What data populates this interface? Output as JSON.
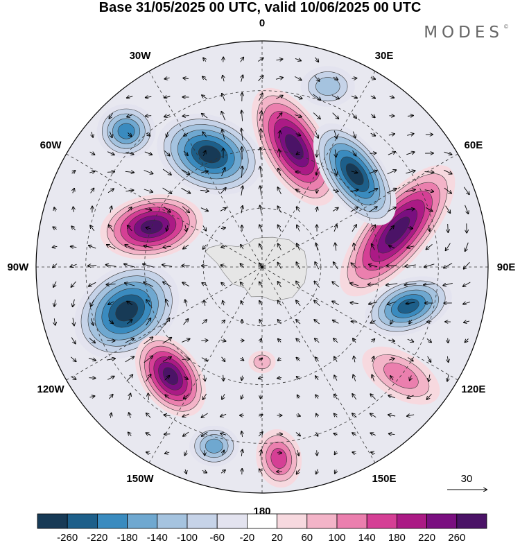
{
  "title": "Base 31/05/2025 00 UTC, valid 10/06/2025 00 UTC",
  "brand": "MODES",
  "brand_mark": "©",
  "map": {
    "projection": "south-polar-stereographic",
    "longitude_labels": [
      {
        "text": "0",
        "lon": 0
      },
      {
        "text": "30E",
        "lon": 30
      },
      {
        "text": "60E",
        "lon": 60
      },
      {
        "text": "90E",
        "lon": 90
      },
      {
        "text": "120E",
        "lon": 120
      },
      {
        "text": "150E",
        "lon": 150
      },
      {
        "text": "180",
        "lon": 180
      },
      {
        "text": "150W",
        "lon": -150
      },
      {
        "text": "120W",
        "lon": -120
      },
      {
        "text": "90W",
        "lon": -90
      },
      {
        "text": "60W",
        "lon": -60
      },
      {
        "text": "30W",
        "lon": -30
      }
    ],
    "land_color": "#e6e6e6",
    "grid": true
  },
  "vector_reference": {
    "label": "30"
  },
  "colorbar": {
    "ticks": [
      "-260",
      "-220",
      "-180",
      "-140",
      "-100",
      "-60",
      "-20",
      "20",
      "60",
      "100",
      "140",
      "180",
      "220",
      "260"
    ],
    "colors": [
      "#173a56",
      "#1d5f8a",
      "#3a8bbf",
      "#6fa8d0",
      "#a5c3df",
      "#c6d3e8",
      "#e3e3ef",
      "#ffffff",
      "#f7d9df",
      "#f3b4c8",
      "#eb7fae",
      "#d53f95",
      "#ab1a85",
      "#7a0f80",
      "#4b1367"
    ]
  },
  "anomaly_centers": [
    {
      "sign": "positive",
      "lon": 15,
      "dist": 0.55,
      "rx": 0.29,
      "ry": 0.14,
      "rot": 60,
      "value": 260
    },
    {
      "sign": "negative",
      "lon": -25,
      "dist": 0.55,
      "rx": 0.24,
      "ry": 0.17,
      "rot": 20,
      "value": -260
    },
    {
      "sign": "negative",
      "lon": -45,
      "dist": 0.85,
      "rx": 0.13,
      "ry": 0.12,
      "rot": 0,
      "value": -180
    },
    {
      "sign": "positive",
      "lon": -70,
      "dist": 0.52,
      "rx": 0.23,
      "ry": 0.14,
      "rot": -10,
      "value": 260
    },
    {
      "sign": "negative",
      "lon": -108,
      "dist": 0.63,
      "rx": 0.25,
      "ry": 0.19,
      "rot": -35,
      "value": -260
    },
    {
      "sign": "positive",
      "lon": -140,
      "dist": 0.63,
      "rx": 0.2,
      "ry": 0.13,
      "rot": 55,
      "value": 260
    },
    {
      "sign": "negative",
      "lon": -165,
      "dist": 0.82,
      "rx": 0.11,
      "ry": 0.09,
      "rot": 0,
      "value": -140
    },
    {
      "sign": "positive",
      "lon": 175,
      "dist": 0.85,
      "rx": 0.13,
      "ry": 0.1,
      "rot": 80,
      "value": 140
    },
    {
      "sign": "positive",
      "lon": 180,
      "dist": 0.42,
      "rx": 0.06,
      "ry": 0.05,
      "rot": 0,
      "value": 60
    },
    {
      "sign": "positive",
      "lon": 128,
      "dist": 0.78,
      "rx": 0.19,
      "ry": 0.1,
      "rot": 30,
      "value": 100
    },
    {
      "sign": "negative",
      "lon": 105,
      "dist": 0.67,
      "rx": 0.2,
      "ry": 0.12,
      "rot": -20,
      "value": -220
    },
    {
      "sign": "positive",
      "lon": 75,
      "dist": 0.62,
      "rx": 0.36,
      "ry": 0.14,
      "rot": -50,
      "value": 260
    },
    {
      "sign": "negative",
      "lon": 45,
      "dist": 0.58,
      "rx": 0.26,
      "ry": 0.13,
      "rot": 55,
      "value": -260
    },
    {
      "sign": "negative",
      "lon": 20,
      "dist": 0.85,
      "rx": 0.12,
      "ry": 0.09,
      "rot": 0,
      "value": -100
    }
  ]
}
